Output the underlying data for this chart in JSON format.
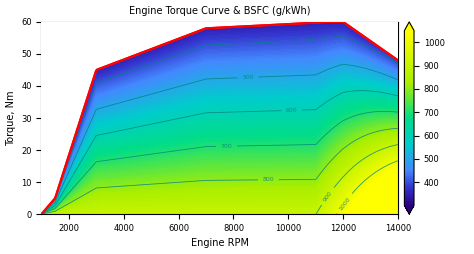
{
  "title": "Engine Torque Curve & BSFC (g/kWh)",
  "xlabel": "Engine RPM",
  "ylabel": "Torque, Nm",
  "rpm_min": 1000,
  "rpm_max": 14000,
  "torque_min": 0,
  "torque_max": 60,
  "contour_levels": [
    400,
    500,
    600,
    700,
    800,
    900,
    1000
  ],
  "cmap_colors": [
    "#2d0080",
    "#3333cc",
    "#4488ff",
    "#00cccc",
    "#00dd88",
    "#aaee00",
    "#ffff00"
  ],
  "cmap_vals": [
    0.0,
    0.1,
    0.2,
    0.35,
    0.5,
    0.7,
    1.0
  ],
  "bsfc_min": 300,
  "bsfc_max": 1050,
  "xticks": [
    2000,
    4000,
    6000,
    8000,
    10000,
    12000,
    14000
  ],
  "yticks": [
    0,
    10,
    20,
    30,
    40,
    50,
    60
  ],
  "cbar_ticks": [
    400,
    500,
    600,
    700,
    800,
    900,
    1000
  ]
}
